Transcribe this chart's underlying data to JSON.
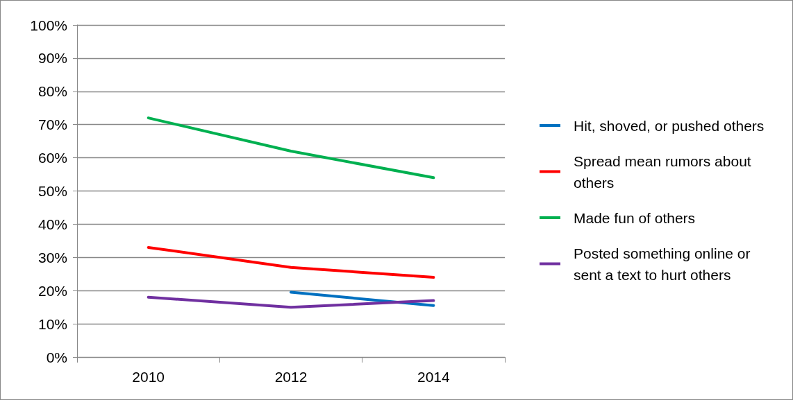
{
  "chart_data": {
    "type": "line",
    "categories": [
      "2010",
      "2012",
      "2014"
    ],
    "series": [
      {
        "name": "Hit, shoved, or pushed others",
        "color": "#0070c0",
        "values": [
          null,
          19.5,
          15.5
        ]
      },
      {
        "name": "Spread mean rumors about others",
        "color": "#ff0000",
        "values": [
          33,
          27,
          24
        ]
      },
      {
        "name": "Made fun of others",
        "color": "#00b050",
        "values": [
          72,
          62,
          54
        ]
      },
      {
        "name": "Posted something online or sent a text to hurt others",
        "color": "#7030a0",
        "values": [
          18,
          15,
          17
        ]
      }
    ],
    "ylim": [
      0,
      100
    ],
    "yticks": [
      {
        "value": 0,
        "label": "0%"
      },
      {
        "value": 10,
        "label": "10%"
      },
      {
        "value": 20,
        "label": "20%"
      },
      {
        "value": 30,
        "label": "30%"
      },
      {
        "value": 40,
        "label": "40%"
      },
      {
        "value": 50,
        "label": "50%"
      },
      {
        "value": 60,
        "label": "60%"
      },
      {
        "value": 70,
        "label": "70%"
      },
      {
        "value": 80,
        "label": "80%"
      },
      {
        "value": 90,
        "label": "90%"
      },
      {
        "value": 100,
        "label": "100%"
      }
    ],
    "grid": "y",
    "legend": "right",
    "marker": "none",
    "line_style": "solid"
  }
}
